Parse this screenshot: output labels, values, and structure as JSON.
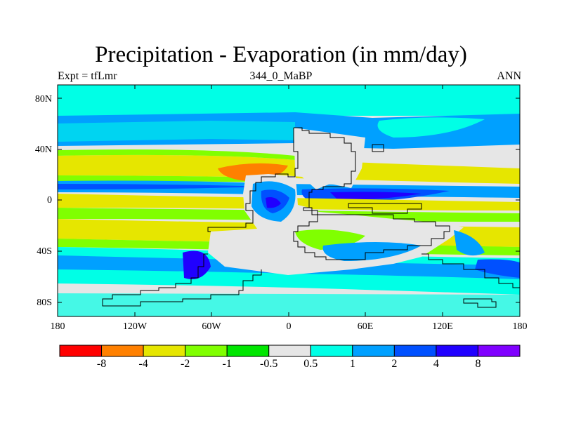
{
  "title": "Precipitation - Evaporation (in mm/day)",
  "subtitle_left": "Expt = tfLmr",
  "subtitle_center": "344_0_MaBP",
  "subtitle_right": "ANN",
  "lat_labels": [
    "80N",
    "40N",
    "0",
    "40S",
    "80S"
  ],
  "lon_labels": [
    "180",
    "120W",
    "60W",
    "0",
    "60E",
    "120E",
    "180"
  ],
  "colorbar": {
    "colors": [
      "#ff0000",
      "#ff8000",
      "#e6e600",
      "#80ff00",
      "#00e600",
      "#e6e6e6",
      "#00ffe6",
      "#00a0ff",
      "#0050ff",
      "#2000ff",
      "#8000ff"
    ],
    "labels": [
      "-8",
      "-4",
      "-2",
      "-1",
      "-0.5",
      "0.5",
      "1",
      "2",
      "4",
      "8"
    ]
  }
}
